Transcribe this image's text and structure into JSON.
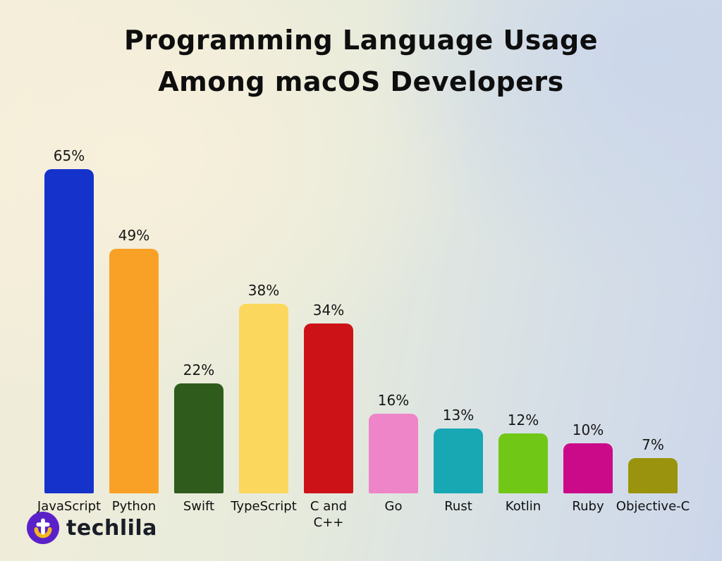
{
  "title": "Programming Language Usage Among macOS Developers",
  "chart_data": {
    "type": "bar",
    "title": "Programming Language Usage Among macOS Developers",
    "categories": [
      "JavaScript",
      "Python",
      "Swift",
      "TypeScript",
      "C and C++",
      "Go",
      "Rust",
      "Kotlin",
      "Ruby",
      "Objective-C"
    ],
    "values": [
      65,
      49,
      22,
      38,
      34,
      16,
      13,
      12,
      10,
      7
    ],
    "value_labels": [
      "65%",
      "49%",
      "22%",
      "38%",
      "34%",
      "16%",
      "13%",
      "12%",
      "10%",
      "7%"
    ],
    "bar_colors": [
      "#1533cb",
      "#f9a127",
      "#2f5c1d",
      "#fbd75d",
      "#cd1217",
      "#ee85c8",
      "#17a8b4",
      "#70c716",
      "#cb0a8a",
      "#9a930d"
    ],
    "xlabel": "",
    "ylabel": "",
    "ylim": [
      0,
      70
    ],
    "grid": false,
    "legend": "none",
    "value_label_format": "percent",
    "axes_visible": false
  },
  "logo": {
    "text": "techlila",
    "badge_color": "#5b21c9",
    "badge_accent": "#f5b71e"
  }
}
